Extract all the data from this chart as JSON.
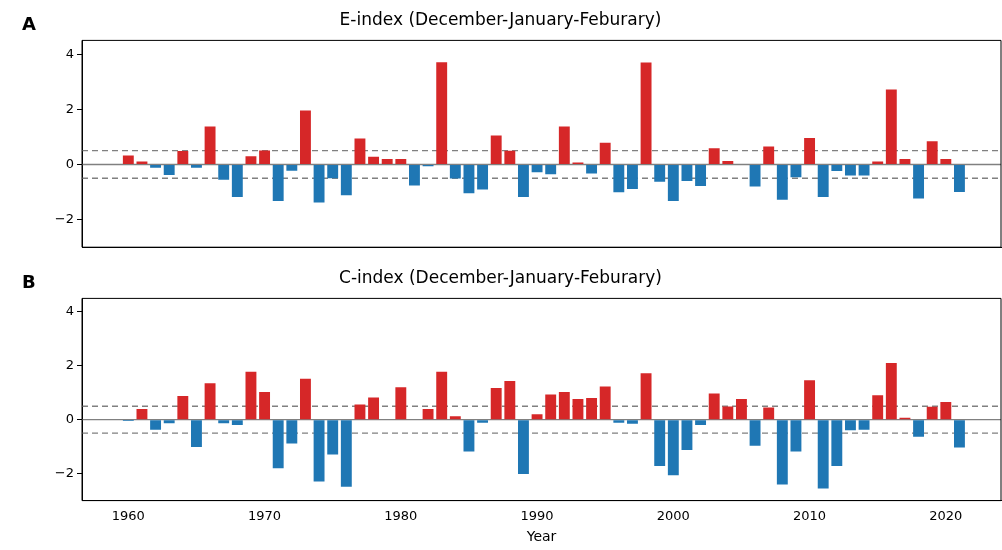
{
  "chart_data": [
    {
      "type": "bar",
      "title": "E-index (December-January-Feburary)",
      "annotations": [
        "A"
      ],
      "x": [
        1960,
        1961,
        1962,
        1963,
        1964,
        1965,
        1966,
        1967,
        1968,
        1969,
        1970,
        1971,
        1972,
        1973,
        1974,
        1975,
        1976,
        1977,
        1978,
        1979,
        1980,
        1981,
        1982,
        1983,
        1984,
        1985,
        1986,
        1987,
        1988,
        1989,
        1990,
        1991,
        1992,
        1993,
        1994,
        1995,
        1996,
        1997,
        1998,
        1999,
        2000,
        2001,
        2002,
        2003,
        2004,
        2005,
        2006,
        2007,
        2008,
        2009,
        2010,
        2011,
        2012,
        2013,
        2014,
        2015,
        2016,
        2017,
        2018,
        2019,
        2020,
        2021
      ],
      "values": [
        0.33,
        0.11,
        -0.12,
        -0.38,
        0.49,
        -0.12,
        1.38,
        -0.55,
        -1.18,
        0.3,
        0.51,
        -1.32,
        -0.23,
        1.96,
        -1.38,
        -0.5,
        -1.12,
        0.94,
        0.28,
        0.2,
        0.2,
        -0.76,
        -0.06,
        3.71,
        -0.51,
        -1.04,
        -0.91,
        1.05,
        0.5,
        -1.18,
        -0.28,
        -0.35,
        1.38,
        0.07,
        -0.33,
        0.79,
        -1.01,
        -0.89,
        3.7,
        -0.63,
        -1.32,
        -0.6,
        -0.78,
        0.59,
        0.13,
        0,
        -0.8,
        0.65,
        -1.28,
        -0.46,
        0.96,
        -1.18,
        -0.24,
        -0.4,
        -0.4,
        0.11,
        2.72,
        0.2,
        -1.23,
        0.84,
        0.2,
        -1.0
      ],
      "colors": [
        "#d62728",
        "#d62728",
        "#1f77b4",
        "#1f77b4",
        "#d62728",
        "#1f77b4",
        "#d62728",
        "#1f77b4",
        "#1f77b4",
        "#d62728",
        "#d62728",
        "#1f77b4",
        "#1f77b4",
        "#d62728",
        "#1f77b4",
        "#1f77b4",
        "#1f77b4",
        "#d62728",
        "#d62728",
        "#d62728",
        "#d62728",
        "#1f77b4",
        "#1f77b4",
        "#d62728",
        "#1f77b4",
        "#1f77b4",
        "#1f77b4",
        "#d62728",
        "#d62728",
        "#1f77b4",
        "#1f77b4",
        "#1f77b4",
        "#d62728",
        "#d62728",
        "#1f77b4",
        "#d62728",
        "#1f77b4",
        "#1f77b4",
        "#d62728",
        "#1f77b4",
        "#1f77b4",
        "#1f77b4",
        "#1f77b4",
        "#d62728",
        "#d62728",
        "#d62728",
        "#1f77b4",
        "#d62728",
        "#1f77b4",
        "#1f77b4",
        "#d62728",
        "#1f77b4",
        "#1f77b4",
        "#1f77b4",
        "#1f77b4",
        "#d62728",
        "#d62728",
        "#d62728",
        "#1f77b4",
        "#d62728",
        "#d62728",
        "#1f77b4"
      ],
      "xlim": [
        1956.6,
        2024.05
      ],
      "xticks": [
        1960,
        1970,
        1980,
        1990,
        2000,
        2010,
        2020
      ],
      "ylim": [
        -3,
        4.5
      ],
      "yticks": [
        -2,
        0,
        2,
        4
      ],
      "tick_labels": "y",
      "grid": false,
      "legend": false,
      "ref_lines": [
        {
          "axis": "y",
          "value": 0,
          "color": "#808080",
          "line_style": "solid"
        },
        {
          "axis": "y",
          "value": 0.5,
          "color": "#808080",
          "line_style": "dashed"
        },
        {
          "axis": "y",
          "value": -0.5,
          "color": "#808080",
          "line_style": "dashed"
        }
      ]
    },
    {
      "type": "bar",
      "title": "C-index (December-January-Feburary)",
      "xlabel": "Year",
      "annotations": [
        "B"
      ],
      "x": [
        1960,
        1961,
        1962,
        1963,
        1964,
        1965,
        1966,
        1967,
        1968,
        1969,
        1970,
        1971,
        1972,
        1973,
        1974,
        1975,
        1976,
        1977,
        1978,
        1979,
        1980,
        1981,
        1982,
        1983,
        1984,
        1985,
        1986,
        1987,
        1988,
        1989,
        1990,
        1991,
        1992,
        1993,
        1994,
        1995,
        1996,
        1997,
        1998,
        1999,
        2000,
        2001,
        2002,
        2003,
        2004,
        2005,
        2006,
        2007,
        2008,
        2009,
        2010,
        2011,
        2012,
        2013,
        2014,
        2015,
        2016,
        2017,
        2018,
        2019,
        2020,
        2021
      ],
      "values": [
        -0.05,
        0.4,
        -0.37,
        -0.13,
        0.88,
        -1.01,
        1.35,
        -0.13,
        -0.2,
        1.78,
        1.03,
        -1.8,
        -0.88,
        1.52,
        -2.29,
        -1.29,
        -2.49,
        0.56,
        0.82,
        0,
        1.2,
        0,
        0.4,
        1.78,
        0.13,
        -1.18,
        -0.11,
        1.18,
        1.44,
        -2.01,
        0.2,
        0.94,
        1.03,
        0.77,
        0.81,
        1.23,
        -0.11,
        -0.15,
        1.72,
        -1.72,
        -2.06,
        -1.12,
        -0.2,
        0.97,
        0.49,
        0.77,
        -0.97,
        0.45,
        -2.4,
        -1.18,
        1.46,
        -2.55,
        -1.72,
        -0.39,
        -0.37,
        0.91,
        2.1,
        0.07,
        -0.63,
        0.48,
        0.66,
        -1.03
      ],
      "colors": [
        "#1f77b4",
        "#d62728",
        "#1f77b4",
        "#1f77b4",
        "#d62728",
        "#1f77b4",
        "#d62728",
        "#1f77b4",
        "#1f77b4",
        "#d62728",
        "#d62728",
        "#1f77b4",
        "#1f77b4",
        "#d62728",
        "#1f77b4",
        "#1f77b4",
        "#1f77b4",
        "#d62728",
        "#d62728",
        "#d62728",
        "#d62728",
        "#d62728",
        "#d62728",
        "#d62728",
        "#d62728",
        "#1f77b4",
        "#1f77b4",
        "#d62728",
        "#d62728",
        "#1f77b4",
        "#d62728",
        "#d62728",
        "#d62728",
        "#d62728",
        "#d62728",
        "#d62728",
        "#1f77b4",
        "#1f77b4",
        "#d62728",
        "#1f77b4",
        "#1f77b4",
        "#1f77b4",
        "#1f77b4",
        "#d62728",
        "#d62728",
        "#d62728",
        "#1f77b4",
        "#d62728",
        "#1f77b4",
        "#1f77b4",
        "#d62728",
        "#1f77b4",
        "#1f77b4",
        "#1f77b4",
        "#1f77b4",
        "#d62728",
        "#d62728",
        "#d62728",
        "#1f77b4",
        "#d62728",
        "#d62728",
        "#1f77b4"
      ],
      "xlim": [
        1956.6,
        2024.05
      ],
      "xticks": [
        1960,
        1970,
        1980,
        1990,
        2000,
        2010,
        2020
      ],
      "ylim": [
        -3,
        4.5
      ],
      "yticks": [
        -2,
        0,
        2,
        4
      ],
      "grid": false,
      "legend": false,
      "ref_lines": [
        {
          "axis": "y",
          "value": 0,
          "color": "#808080",
          "line_style": "solid"
        },
        {
          "axis": "y",
          "value": 0.5,
          "color": "#808080",
          "line_style": "dashed"
        },
        {
          "axis": "y",
          "value": -0.5,
          "color": "#808080",
          "line_style": "dashed"
        }
      ]
    }
  ]
}
